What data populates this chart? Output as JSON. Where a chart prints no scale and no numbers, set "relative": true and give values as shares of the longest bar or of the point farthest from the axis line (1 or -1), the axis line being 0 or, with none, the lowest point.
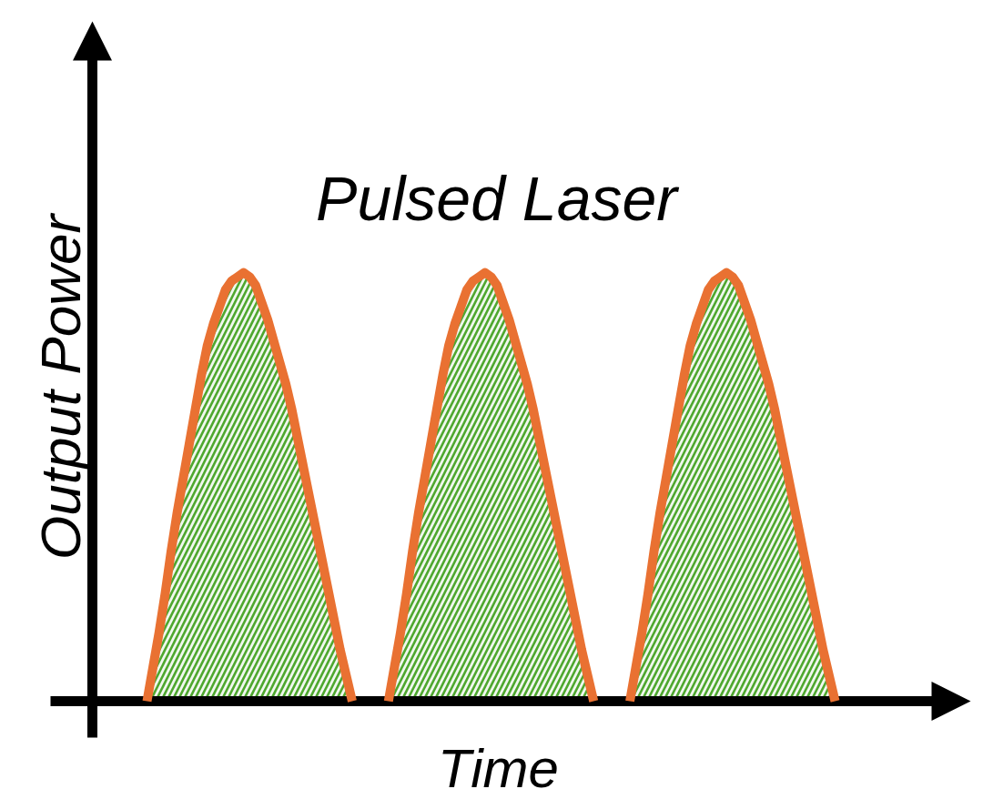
{
  "chart_data": {
    "type": "area",
    "title": "Pulsed Laser",
    "xlabel": "Time",
    "ylabel": "Output Power",
    "relative": true,
    "grid": false,
    "line_style": "solid",
    "ref_lines": [
      {
        "axis": "y",
        "value": 0,
        "color": "#000000"
      }
    ],
    "categories": [
      null,
      null,
      null,
      null,
      null,
      null,
      null,
      null,
      null,
      null,
      null,
      null,
      null,
      null,
      null,
      null,
      null,
      null,
      null,
      null,
      null,
      null,
      null,
      null,
      null,
      null,
      null,
      null,
      null,
      null,
      null,
      null,
      null,
      null,
      null,
      null,
      null,
      null,
      null,
      null,
      null,
      null,
      null,
      null,
      null,
      null,
      null,
      null,
      null,
      null,
      null,
      null,
      null,
      null,
      null,
      null,
      null,
      null,
      null,
      null,
      null,
      null,
      null,
      null,
      null,
      null,
      null,
      null,
      null,
      null,
      null,
      null,
      null,
      null,
      null,
      null,
      null,
      null,
      null,
      null,
      null,
      null,
      null,
      null,
      null,
      null,
      null,
      null,
      null,
      null,
      null,
      null,
      null,
      null,
      null,
      null,
      null,
      null,
      null,
      null,
      null,
      null,
      null,
      null,
      null,
      null,
      null,
      null,
      null,
      null,
      null,
      null,
      null,
      null,
      null
    ],
    "series": [
      {
        "color": "#4ea72e",
        "values": [
          0,
          0.08,
          0.16,
          0.25,
          0.35,
          0.44,
          0.52,
          0.6,
          0.68,
          0.76,
          0.83,
          0.88,
          0.92,
          0.96,
          0.98,
          0.99,
          1,
          0.99,
          0.97,
          0.93,
          0.89,
          0.84,
          0.79,
          0.74,
          0.68,
          0.61,
          0.54,
          0.47,
          0.4,
          0.33,
          0.26,
          0.19,
          0.12,
          0.06,
          0,
          null,
          null,
          null,
          null,
          null,
          0,
          0.08,
          0.16,
          0.25,
          0.35,
          0.44,
          0.52,
          0.6,
          0.68,
          0.76,
          0.83,
          0.88,
          0.92,
          0.96,
          0.98,
          0.99,
          1,
          0.99,
          0.97,
          0.93,
          0.89,
          0.84,
          0.79,
          0.74,
          0.68,
          0.61,
          0.54,
          0.47,
          0.4,
          0.33,
          0.26,
          0.19,
          0.12,
          0.06,
          0,
          null,
          null,
          null,
          null,
          null,
          0,
          0.08,
          0.16,
          0.25,
          0.35,
          0.44,
          0.52,
          0.6,
          0.68,
          0.76,
          0.83,
          0.88,
          0.92,
          0.96,
          0.98,
          0.99,
          1,
          0.99,
          0.97,
          0.93,
          0.89,
          0.84,
          0.79,
          0.74,
          0.68,
          0.61,
          0.54,
          0.47,
          0.4,
          0.33,
          0.26,
          0.19,
          0.12,
          0.06,
          0
        ]
      },
      {
        "type": "line",
        "color": "#e97132",
        "values": [
          0,
          0.08,
          0.16,
          0.25,
          0.35,
          0.44,
          0.52,
          0.6,
          0.68,
          0.76,
          0.83,
          0.88,
          0.92,
          0.96,
          0.98,
          0.99,
          1,
          0.99,
          0.97,
          0.93,
          0.89,
          0.84,
          0.79,
          0.74,
          0.68,
          0.61,
          0.54,
          0.47,
          0.4,
          0.33,
          0.26,
          0.19,
          0.12,
          0.06,
          0,
          null,
          null,
          null,
          null,
          null,
          0,
          0.08,
          0.16,
          0.25,
          0.35,
          0.44,
          0.52,
          0.6,
          0.68,
          0.76,
          0.83,
          0.88,
          0.92,
          0.96,
          0.98,
          0.99,
          1,
          0.99,
          0.97,
          0.93,
          0.89,
          0.84,
          0.79,
          0.74,
          0.68,
          0.61,
          0.54,
          0.47,
          0.4,
          0.33,
          0.26,
          0.19,
          0.12,
          0.06,
          0,
          null,
          null,
          null,
          null,
          null,
          0,
          0.08,
          0.16,
          0.25,
          0.35,
          0.44,
          0.52,
          0.6,
          0.68,
          0.76,
          0.83,
          0.88,
          0.92,
          0.96,
          0.98,
          0.99,
          1,
          0.99,
          0.97,
          0.93,
          0.89,
          0.84,
          0.79,
          0.74,
          0.68,
          0.61,
          0.54,
          0.47,
          0.4,
          0.33,
          0.26,
          0.19,
          0.12,
          0.06,
          0
        ]
      }
    ]
  }
}
